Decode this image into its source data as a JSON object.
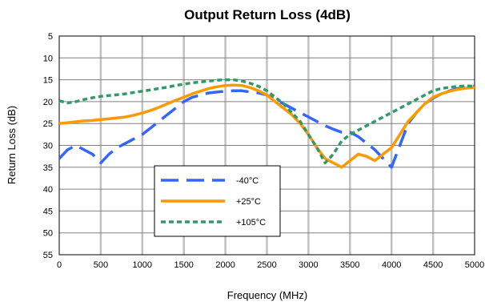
{
  "chart_data": {
    "type": "line",
    "title": "Output Return Loss (4dB)",
    "xlabel": "Frequency (MHz)",
    "ylabel": "Return Loss (dB)",
    "xlim": [
      0,
      5000
    ],
    "ylim": [
      5,
      55
    ],
    "y_inverted": true,
    "x_ticks": [
      0,
      500,
      1000,
      1500,
      2000,
      2500,
      3000,
      3500,
      4000,
      4500,
      5000
    ],
    "y_ticks": [
      5,
      10,
      15,
      20,
      25,
      30,
      35,
      40,
      45,
      50,
      55
    ],
    "grid": true,
    "legend_position": "bottom-center",
    "series": [
      {
        "name": "-40°C",
        "color": "#3366ff",
        "dash": "long-dash",
        "x": [
          0,
          100,
          200,
          300,
          400,
          500,
          600,
          700,
          800,
          900,
          1000,
          1100,
          1200,
          1300,
          1400,
          1500,
          1600,
          1700,
          1800,
          1900,
          2000,
          2100,
          2200,
          2300,
          2400,
          2500,
          2600,
          2700,
          2800,
          2900,
          3000,
          3100,
          3200,
          3300,
          3400,
          3500,
          3600,
          3700,
          3800,
          3900,
          4000,
          4100,
          4200,
          4300,
          4400,
          4500,
          4600,
          4700,
          4800,
          4900,
          5000
        ],
        "values": [
          33,
          31,
          30,
          31,
          32,
          34,
          32,
          30.5,
          29.5,
          28.5,
          27.5,
          26,
          24.5,
          23,
          21.5,
          20,
          19,
          18.5,
          18,
          17.8,
          17.6,
          17.5,
          17.5,
          17.8,
          18,
          18.5,
          19.5,
          20.5,
          21.5,
          22.5,
          23.5,
          24.5,
          25.5,
          26.3,
          27,
          27,
          28,
          29.5,
          31,
          33,
          35,
          30,
          25,
          22.5,
          20.5,
          19.2,
          18.2,
          17.5,
          17,
          16.7,
          16.5
        ]
      },
      {
        "name": "+25°C",
        "color": "#ff9900",
        "dash": "solid",
        "x": [
          0,
          100,
          200,
          300,
          400,
          500,
          600,
          700,
          800,
          900,
          1000,
          1100,
          1200,
          1300,
          1400,
          1500,
          1600,
          1700,
          1800,
          1900,
          2000,
          2100,
          2200,
          2300,
          2400,
          2500,
          2600,
          2700,
          2800,
          2900,
          3000,
          3100,
          3200,
          3300,
          3400,
          3500,
          3600,
          3700,
          3800,
          3900,
          4000,
          4100,
          4200,
          4300,
          4400,
          4500,
          4600,
          4700,
          4800,
          4900,
          5000
        ],
        "values": [
          25,
          24.8,
          24.6,
          24.4,
          24.3,
          24.1,
          23.9,
          23.7,
          23.5,
          23.1,
          22.6,
          22,
          21.3,
          20.5,
          19.7,
          19,
          18.2,
          17.6,
          17,
          16.6,
          16.3,
          16.2,
          16.3,
          16.8,
          17.5,
          18.5,
          20,
          21.5,
          23,
          25,
          27.5,
          30.5,
          33,
          34,
          35,
          33.5,
          32,
          32.5,
          33.5,
          32,
          30.5,
          27.5,
          24.5,
          22.5,
          20.5,
          19,
          18.2,
          17.6,
          17.2,
          16.9,
          16.7
        ]
      },
      {
        "name": "+105°C",
        "color": "#339966",
        "dash": "short-dash",
        "x": [
          0,
          100,
          200,
          300,
          400,
          500,
          600,
          700,
          800,
          900,
          1000,
          1100,
          1200,
          1300,
          1400,
          1500,
          1600,
          1700,
          1800,
          1900,
          2000,
          2100,
          2200,
          2300,
          2400,
          2500,
          2600,
          2700,
          2800,
          2900,
          3000,
          3100,
          3200,
          3300,
          3400,
          3500,
          3600,
          3700,
          3800,
          3900,
          4000,
          4100,
          4200,
          4300,
          4400,
          4500,
          4600,
          4700,
          4800,
          4900,
          5000
        ],
        "values": [
          19.8,
          20.3,
          20,
          19.5,
          19.1,
          18.8,
          18.6,
          18.4,
          18.2,
          17.9,
          17.6,
          17.3,
          17,
          16.7,
          16.3,
          16,
          15.7,
          15.5,
          15.3,
          15.1,
          15,
          15,
          15.3,
          15.8,
          16.5,
          17.5,
          19,
          20.5,
          22.5,
          24.5,
          27.5,
          30.5,
          34,
          32,
          29,
          27.5,
          26.5,
          25.5,
          24.5,
          23.5,
          22.5,
          21.5,
          20.5,
          19.5,
          18.5,
          17.5,
          17,
          16.7,
          16.5,
          16.4,
          16.5
        ]
      }
    ]
  }
}
